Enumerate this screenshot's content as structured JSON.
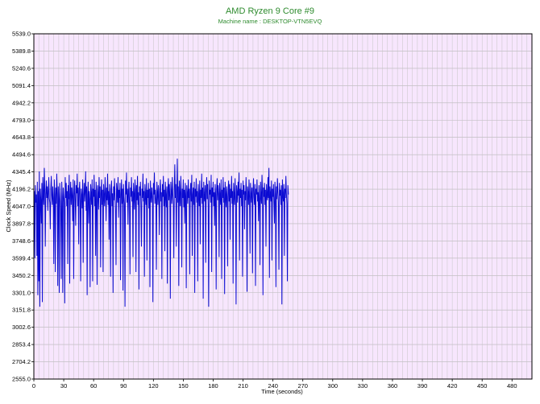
{
  "chart_data": {
    "type": "line",
    "title": "AMD Ryzen 9 Core #9",
    "subtitle": "Machine name : DESKTOP-VTN5EVQ",
    "xlabel": "Time (seconds)",
    "ylabel": "Clock Speed (MHz)",
    "xlim": [
      0,
      500
    ],
    "ylim": [
      2555.0,
      5539.0
    ],
    "x_ticks": [
      0,
      30,
      60,
      90,
      120,
      150,
      180,
      210,
      240,
      270,
      300,
      330,
      360,
      390,
      420,
      450,
      480
    ],
    "y_ticks": [
      "2555.0",
      "2704.2",
      "2853.4",
      "3002.6",
      "3151.8",
      "3301.0",
      "3450.2",
      "3599.4",
      "3748.6",
      "3897.8",
      "4047.0",
      "4196.2",
      "4345.4",
      "4494.6",
      "4643.8",
      "4793.0",
      "4942.2",
      "5091.4",
      "5240.6",
      "5389.8",
      "5539.0"
    ],
    "grid": true,
    "legend": "none",
    "series": [
      {
        "sample_interval_s": 0.5,
        "values": [
          4120,
          4180,
          3600,
          4230,
          4080,
          4150,
          3620,
          4260,
          3280,
          4180,
          3400,
          4350,
          3180,
          4200,
          4100,
          3900,
          4250,
          3220,
          4300,
          4150,
          4060,
          4380,
          4200,
          3700,
          4150,
          4270,
          4120,
          4220,
          4010,
          4170,
          4300,
          4120,
          4080,
          3850,
          4200,
          4310,
          4140,
          4060,
          4220,
          4110,
          3550,
          4280,
          4150,
          3480,
          4210,
          4070,
          4330,
          4150,
          3360,
          4220,
          4110,
          3300,
          4250,
          4150,
          4020,
          3420,
          4260,
          4130,
          3300,
          4210,
          4150,
          4080,
          3210,
          4300,
          4120,
          4250,
          4050,
          4180,
          3550,
          4230,
          4110,
          4320,
          3380,
          4150,
          4260,
          4060,
          4210,
          4140,
          3920,
          4280,
          3420,
          4150,
          4270,
          4100,
          3880,
          4230,
          4160,
          4330,
          4050,
          4210,
          3720,
          4180,
          4260,
          4090,
          3400,
          4200,
          4140,
          4030,
          4280,
          3560,
          4150,
          4250,
          4090,
          4180,
          4350,
          4010,
          4220,
          3280,
          4150,
          4260,
          3900,
          4180,
          4110,
          3350,
          4240,
          4160,
          4060,
          4280,
          3400,
          4200,
          4130,
          4320,
          4050,
          4190,
          3620,
          4260,
          4110,
          3370,
          4230,
          4160,
          4020,
          4300,
          4120,
          4220,
          3520,
          4160,
          4280,
          4060,
          4190,
          3480,
          4240,
          4130,
          4050,
          4300,
          4170,
          3920,
          4210,
          4100,
          4330,
          4060,
          4180,
          3760,
          4240,
          4130,
          3440,
          4200,
          4270,
          4050,
          4160,
          3300,
          4220,
          4100,
          4290,
          4140,
          4020,
          3540,
          4250,
          4180,
          4080,
          4300,
          3950,
          4190,
          4120,
          4250,
          3410,
          4150,
          4280,
          4070,
          4200,
          3320,
          4240,
          4130,
          4060,
          3180,
          4270,
          4150,
          4340,
          4080,
          4200,
          3890,
          4180,
          4260,
          4040,
          3460,
          4210,
          4130,
          4300,
          4090,
          4180,
          3610,
          4250,
          4150,
          4020,
          4280,
          4190,
          3480,
          4230,
          4100,
          4310,
          4060,
          4170,
          3330,
          4220,
          4140,
          4260,
          4050,
          3700,
          4200,
          4120,
          4330,
          4090,
          4180,
          3440,
          4240,
          4150,
          4060,
          4290,
          3580,
          4190,
          4120,
          4250,
          4030,
          4200,
          3350,
          4270,
          4160,
          4080,
          4210,
          4130,
          3220,
          4250,
          4150,
          4340,
          4070,
          4190,
          4110,
          3500,
          4260,
          4180,
          4060,
          4230,
          4140,
          3800,
          4200,
          4280,
          4090,
          4170,
          3420,
          4240,
          4130,
          4310,
          4050,
          4190,
          3660,
          4260,
          4150,
          4040,
          4220,
          3380,
          4180,
          4290,
          4100,
          4240,
          4130,
          3250,
          4260,
          4170,
          4070,
          4300,
          4150,
          4080,
          3600,
          4210,
          4410,
          4120,
          4240,
          3700,
          4180,
          4460,
          4080,
          4220,
          3360,
          4270,
          4150,
          4050,
          4310,
          4160,
          3520,
          4200,
          4120,
          4280,
          4040,
          4190,
          3900,
          4250,
          4140,
          3340,
          4230,
          4160,
          4070,
          4280,
          4120,
          4200,
          3460,
          4170,
          4250,
          4090,
          4320,
          3620,
          4150,
          4210,
          4060,
          4260,
          3300,
          4200,
          4130,
          4290,
          4080,
          4180,
          3400,
          4240,
          4150,
          4050,
          4270,
          3720,
          4190,
          4120,
          4330,
          4070,
          4210,
          3250,
          4260,
          4140,
          4090,
          4230,
          3560,
          4180,
          4300,
          4110,
          4240,
          4060,
          3180,
          4270,
          4150,
          4190,
          4080,
          4320,
          3480,
          4210,
          4130,
          4260,
          4050,
          4170,
          3880,
          4240,
          4150,
          3330,
          4200,
          4290,
          4100,
          4230,
          4160,
          3610,
          4250,
          4140,
          4060,
          4280,
          3420,
          4190,
          4120,
          4300,
          4080,
          4210,
          3290,
          4260,
          4150,
          4040,
          4220,
          4130,
          3530,
          4180,
          4270,
          4090,
          4240,
          3760,
          4200,
          4120,
          4310,
          4070,
          4180,
          3380,
          4250,
          4150,
          4060,
          4290,
          4110,
          3200,
          4230,
          4170,
          4080,
          4260,
          4140,
          4340,
          3580,
          4200,
          4120,
          4250,
          4050,
          4190,
          3440,
          4270,
          4150,
          4230,
          3850,
          4180,
          4100,
          4300,
          4140,
          3310,
          4220,
          4170,
          4060,
          4280,
          4120,
          3640,
          4250,
          4160,
          4080,
          4210,
          3470,
          4190,
          4290,
          4130,
          4060,
          4240,
          3360,
          4200,
          4150,
          4280,
          4090,
          4170,
          3920,
          4230,
          4120,
          3540,
          4260,
          4140,
          4070,
          4320,
          4180,
          3280,
          4210,
          4130,
          4250,
          4060,
          4190,
          3700,
          4240,
          4150,
          4100,
          4300,
          4120,
          4380,
          3430,
          4220,
          4160,
          4090,
          4270,
          3580,
          4200,
          4130,
          4240,
          4070,
          3900,
          4260,
          4150,
          3350,
          4220,
          4110,
          4290,
          4170,
          4080,
          3500,
          4250,
          4140,
          4190,
          4060,
          4230,
          3200,
          4280,
          4150,
          4090,
          4240,
          3620,
          4200,
          4120,
          4310,
          4160,
          4070,
          3400,
          4230,
          4150
        ]
      }
    ]
  }
}
